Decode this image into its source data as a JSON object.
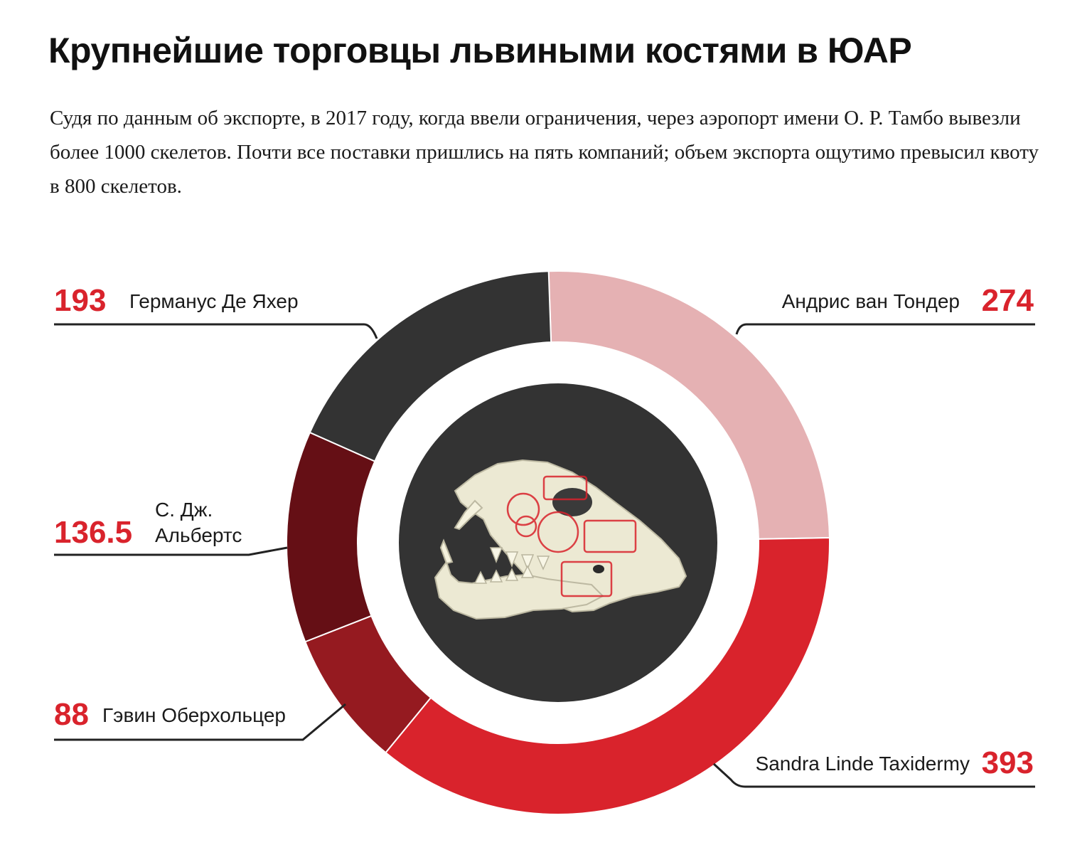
{
  "title": "Крупнейшие торговцы львиными костями в ЮАР",
  "subtitle": "Судя по данным об экспорте, в 2017 году, когда ввели ограничения, через аэропорт имени О. Р. Тамбо вывезли более 1000 скелетов. Почти все поставки пришлись на пять компаний; объем экспорта ощутимо превысил квоту в 800 скелетов.",
  "center_image": "lion-skull-with-red-stamps-illustration",
  "colors": {
    "value_text": "#d9232c",
    "center_disc": "#333333",
    "leader_line": "#222222"
  },
  "chart_data": {
    "type": "pie",
    "variant": "donut",
    "start_angle_deg": -2,
    "slices": [
      {
        "name": "Андрис ван Тондер",
        "value": 274,
        "value_label": "274",
        "color": "#e5b1b3"
      },
      {
        "name": "Sandra Linde Taxidermy",
        "value": 393,
        "value_label": "393",
        "color": "#d9232c"
      },
      {
        "name": "Гэвин Оберхольцер",
        "value": 88,
        "value_label": "88",
        "color": "#951a20"
      },
      {
        "name": "С. Дж. Альбертс",
        "name_lines": [
          "С. Дж.",
          "Альбертс"
        ],
        "value": 136.5,
        "value_label": "136.5",
        "color": "#650f15"
      },
      {
        "name": "Германус Де Яхер",
        "value": 193,
        "value_label": "193",
        "color": "#333333"
      }
    ]
  }
}
